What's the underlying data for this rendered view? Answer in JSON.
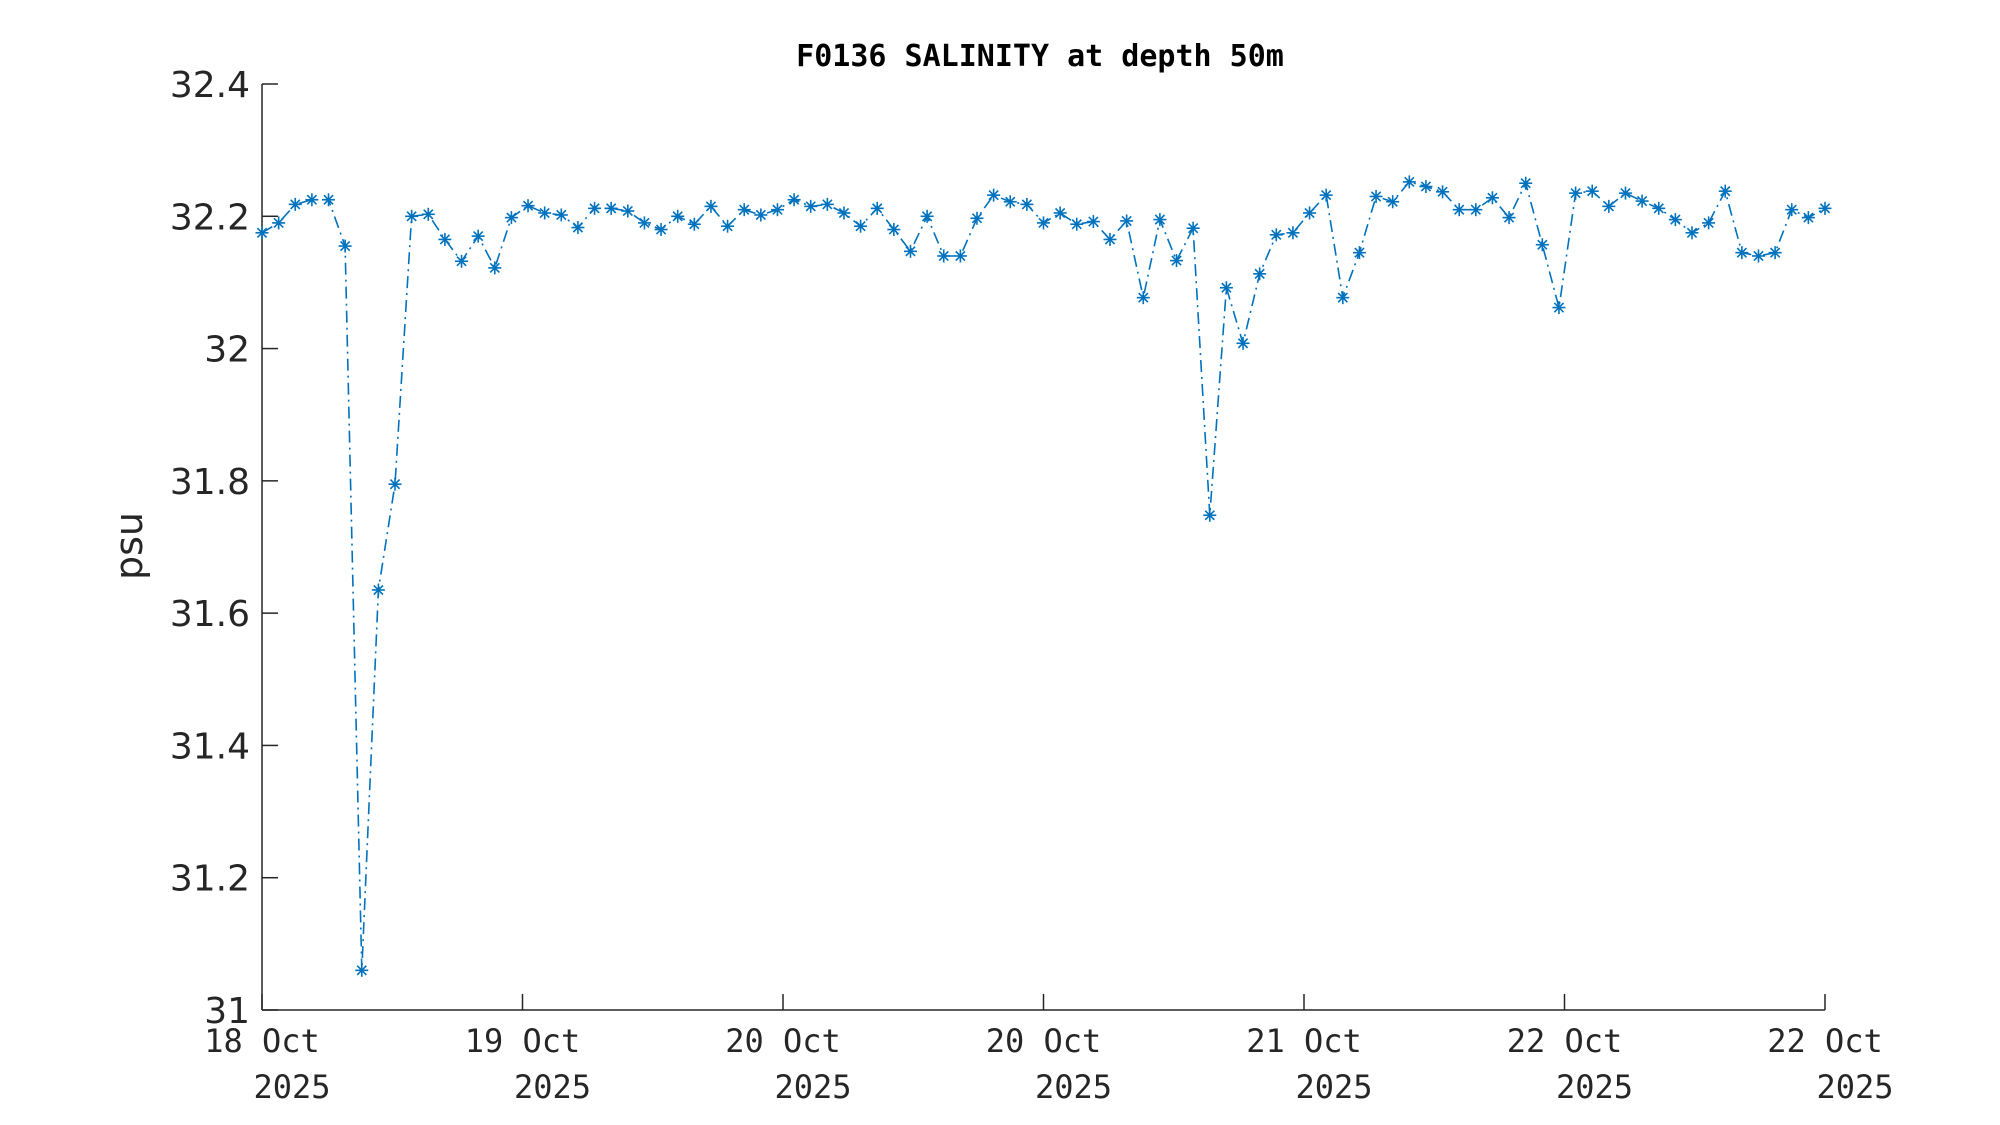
{
  "chart_data": {
    "type": "line",
    "title": "F0136 SALINITY at depth 50m",
    "xlabel": "",
    "ylabel": "psu",
    "ylim": [
      31,
      32.4
    ],
    "yticks": [
      "31",
      "31.2",
      "31.4",
      "31.6",
      "31.8",
      "32",
      "32.2",
      "32.4"
    ],
    "ytick_values": [
      31,
      31.2,
      31.4,
      31.6,
      31.8,
      32,
      32.2,
      32.4
    ],
    "xticks": [
      {
        "line1": "18 Oct",
        "line2": "2025"
      },
      {
        "line1": "19 Oct",
        "line2": "2025"
      },
      {
        "line1": "20 Oct",
        "line2": "2025"
      },
      {
        "line1": "20 Oct",
        "line2": "2025"
      },
      {
        "line1": "21 Oct",
        "line2": "2025"
      },
      {
        "line1": "22 Oct",
        "line2": "2025"
      },
      {
        "line1": "22 Oct",
        "line2": "2025"
      }
    ],
    "grid": false,
    "marker": "asterisk",
    "line_style": "dash-dot",
    "series_color": "#0072BD",
    "series": [
      {
        "values": [
          32.175,
          32.19,
          32.218,
          32.225,
          32.225,
          32.155,
          31.06,
          31.635,
          31.795,
          32.2,
          32.203,
          32.165,
          32.132,
          32.17,
          32.122,
          32.198,
          32.216,
          32.205,
          32.202,
          32.183,
          32.212,
          32.212,
          32.208,
          32.19,
          32.18,
          32.2,
          32.188,
          32.215,
          32.185,
          32.21,
          32.202,
          32.21,
          32.225,
          32.215,
          32.218,
          32.205,
          32.185,
          32.212,
          32.18,
          32.147,
          32.2,
          32.14,
          32.14,
          32.197,
          32.232,
          32.222,
          32.218,
          32.19,
          32.205,
          32.188,
          32.192,
          32.165,
          32.193,
          32.077,
          32.195,
          32.133,
          32.182,
          31.748,
          32.092,
          32.008,
          32.113,
          32.172,
          32.175,
          32.205,
          32.232,
          32.077,
          32.145,
          32.23,
          32.222,
          32.252,
          32.245,
          32.237,
          32.21,
          32.21,
          32.228,
          32.198,
          32.25,
          32.157,
          32.062,
          32.235,
          32.238,
          32.215,
          32.235,
          32.223,
          32.212,
          32.195,
          32.175,
          32.19,
          32.238,
          32.145,
          32.14,
          32.145,
          32.21,
          32.198,
          32.212
        ]
      }
    ]
  }
}
